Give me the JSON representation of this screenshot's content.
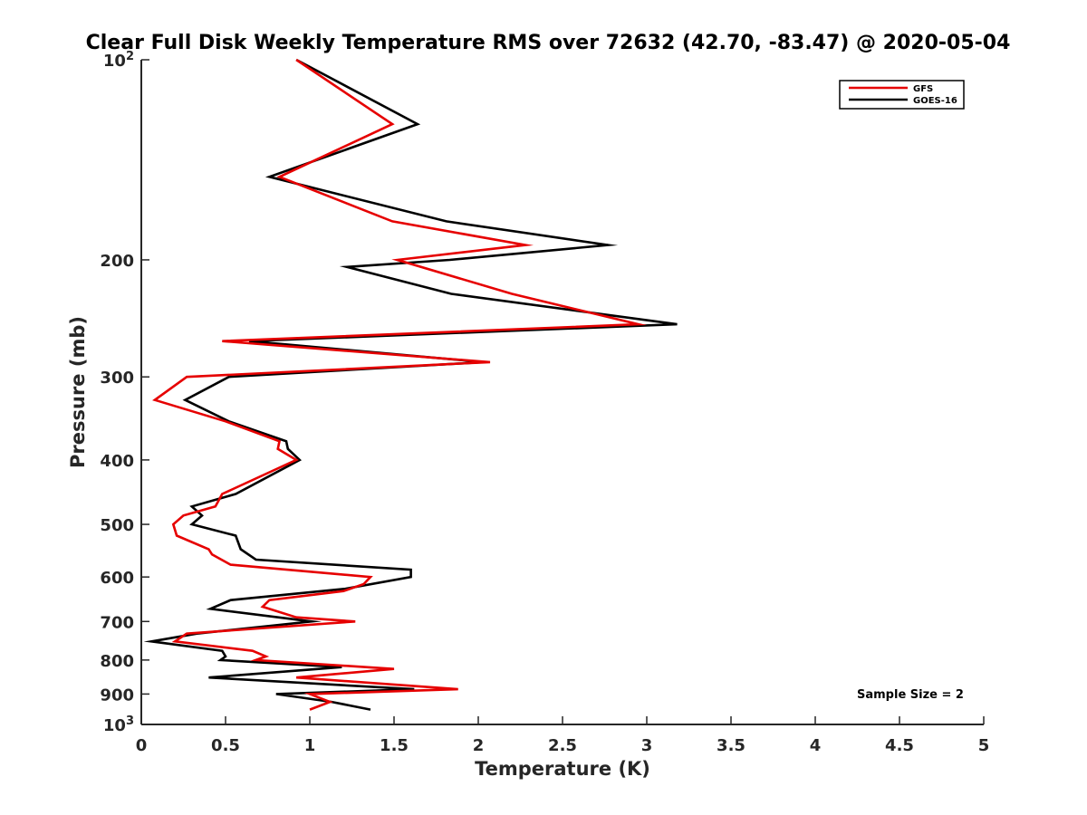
{
  "chart_data": {
    "type": "line",
    "title": "Clear Full Disk Weekly Temperature RMS over 72632 (42.70, -83.47) @ 2020-05-04",
    "xlabel": "Temperature (K)",
    "ylabel": "Pressure (mb)",
    "xlim": [
      0,
      5
    ],
    "ylim": [
      1000,
      100
    ],
    "y_scale": "log",
    "y_reversed": true,
    "x_ticks": [
      "0",
      "0.5",
      "1",
      "1.5",
      "2",
      "2.5",
      "3",
      "3.5",
      "4",
      "4.5",
      "5"
    ],
    "y_ticks": [
      {
        "value": 100,
        "base": "10",
        "exp": "2"
      },
      {
        "value": 200,
        "label": "200"
      },
      {
        "value": 300,
        "label": "300"
      },
      {
        "value": 400,
        "label": "400"
      },
      {
        "value": 500,
        "label": "500"
      },
      {
        "value": 600,
        "label": "600"
      },
      {
        "value": 700,
        "label": "700"
      },
      {
        "value": 800,
        "label": "800"
      },
      {
        "value": 900,
        "label": "900"
      },
      {
        "value": 1000,
        "base": "10",
        "exp": "3"
      }
    ],
    "grid": false,
    "legend_position": "top-right",
    "annotation": "Sample Size = 2",
    "series": [
      {
        "name": "GFS",
        "color": "#e60000",
        "points": [
          [
            0.92,
            100
          ],
          [
            1.49,
            125
          ],
          [
            0.82,
            150
          ],
          [
            1.49,
            175
          ],
          [
            2.28,
            190
          ],
          [
            1.52,
            200
          ],
          [
            2.2,
            225
          ],
          [
            2.95,
            250
          ],
          [
            0.48,
            265
          ],
          [
            2.07,
            285
          ],
          [
            0.27,
            300
          ],
          [
            0.08,
            325
          ],
          [
            0.5,
            350
          ],
          [
            0.82,
            375
          ],
          [
            0.81,
            385
          ],
          [
            0.92,
            400
          ],
          [
            0.48,
            450
          ],
          [
            0.44,
            470
          ],
          [
            0.25,
            485
          ],
          [
            0.19,
            500
          ],
          [
            0.21,
            520
          ],
          [
            0.4,
            545
          ],
          [
            0.42,
            555
          ],
          [
            0.53,
            575
          ],
          [
            1.36,
            600
          ],
          [
            1.32,
            615
          ],
          [
            1.2,
            630
          ],
          [
            0.76,
            650
          ],
          [
            0.72,
            665
          ],
          [
            0.92,
            690
          ],
          [
            1.27,
            700
          ],
          [
            0.27,
            730
          ],
          [
            0.2,
            750
          ],
          [
            0.66,
            775
          ],
          [
            0.74,
            790
          ],
          [
            0.68,
            800
          ],
          [
            1.5,
            825
          ],
          [
            0.92,
            850
          ],
          [
            1.88,
            885
          ],
          [
            1.0,
            900
          ],
          [
            1.12,
            925
          ],
          [
            1.0,
            950
          ]
        ]
      },
      {
        "name": "GOES-16",
        "color": "#000000",
        "points": [
          [
            0.92,
            100
          ],
          [
            1.64,
            125
          ],
          [
            0.76,
            150
          ],
          [
            1.81,
            175
          ],
          [
            2.77,
            190
          ],
          [
            1.83,
            200
          ],
          [
            1.22,
            205
          ],
          [
            1.84,
            225
          ],
          [
            3.18,
            250
          ],
          [
            0.64,
            265
          ],
          [
            2.03,
            285
          ],
          [
            0.52,
            300
          ],
          [
            0.26,
            325
          ],
          [
            0.52,
            350
          ],
          [
            0.86,
            375
          ],
          [
            0.87,
            385
          ],
          [
            0.94,
            400
          ],
          [
            0.56,
            450
          ],
          [
            0.3,
            470
          ],
          [
            0.36,
            485
          ],
          [
            0.3,
            500
          ],
          [
            0.56,
            520
          ],
          [
            0.59,
            545
          ],
          [
            0.68,
            565
          ],
          [
            1.6,
            585
          ],
          [
            1.6,
            600
          ],
          [
            1.21,
            625
          ],
          [
            0.53,
            650
          ],
          [
            0.41,
            670
          ],
          [
            1.01,
            700
          ],
          [
            0.33,
            730
          ],
          [
            0.06,
            750
          ],
          [
            0.48,
            775
          ],
          [
            0.5,
            790
          ],
          [
            0.47,
            800
          ],
          [
            1.19,
            820
          ],
          [
            0.4,
            850
          ],
          [
            1.62,
            885
          ],
          [
            0.8,
            900
          ],
          [
            1.13,
            925
          ],
          [
            1.36,
            950
          ]
        ]
      }
    ]
  }
}
